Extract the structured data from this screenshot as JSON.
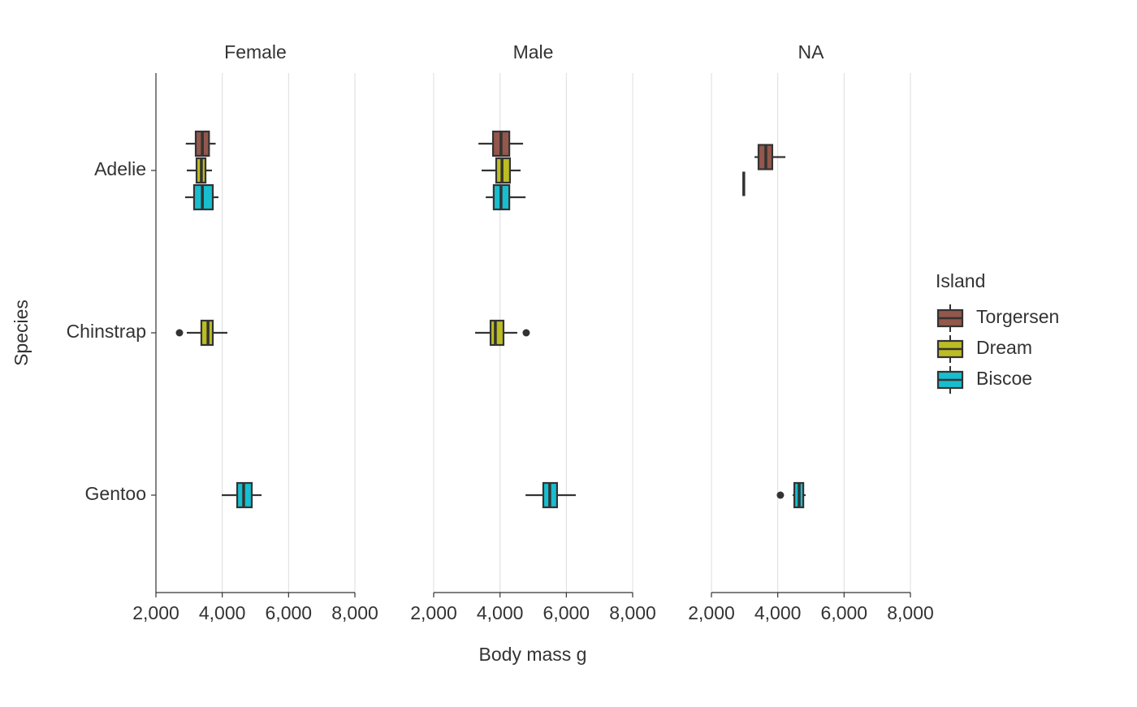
{
  "chart_data": {
    "type": "boxplot",
    "x_label": "Body mass g",
    "y_label": "Species",
    "categories": [
      "Adelie",
      "Chinstrap",
      "Gentoo"
    ],
    "legend_title": "Island",
    "series": [
      {
        "name": "Torgersen",
        "color": "#93574b"
      },
      {
        "name": "Dream",
        "color": "#bcbd22"
      },
      {
        "name": "Biscoe",
        "color": "#17becf"
      }
    ],
    "xlim": [
      2000,
      8000
    ],
    "xticks": [
      {
        "value": 2000,
        "label": "2,000"
      },
      {
        "value": 4000,
        "label": "4,000"
      },
      {
        "value": 6000,
        "label": "6,000"
      },
      {
        "value": 8000,
        "label": "8,000"
      }
    ],
    "grid": true,
    "facets": [
      {
        "name": "Female",
        "boxes": [
          {
            "species": "Adelie",
            "island": "Torgersen",
            "min": 2900,
            "q1": 3200,
            "median": 3400,
            "q3": 3600,
            "max": 3800,
            "outliers": []
          },
          {
            "species": "Adelie",
            "island": "Dream",
            "min": 2930,
            "q1": 3225,
            "median": 3370,
            "q3": 3495,
            "max": 3690,
            "outliers": []
          },
          {
            "species": "Adelie",
            "island": "Biscoe",
            "min": 2880,
            "q1": 3150,
            "median": 3400,
            "q3": 3715,
            "max": 3885,
            "outliers": []
          },
          {
            "species": "Chinstrap",
            "island": "Dream",
            "min": 2930,
            "q1": 3370,
            "median": 3570,
            "q3": 3715,
            "max": 4155,
            "outliers": [
              2710
            ]
          },
          {
            "species": "Gentoo",
            "island": "Biscoe",
            "min": 3985,
            "q1": 4450,
            "median": 4645,
            "q3": 4890,
            "max": 5185,
            "outliers": []
          }
        ]
      },
      {
        "name": "Male",
        "boxes": [
          {
            "species": "Adelie",
            "island": "Torgersen",
            "min": 3350,
            "q1": 3790,
            "median": 4030,
            "q3": 4280,
            "max": 4695,
            "outliers": []
          },
          {
            "species": "Adelie",
            "island": "Dream",
            "min": 3445,
            "q1": 3885,
            "median": 4060,
            "q3": 4300,
            "max": 4620,
            "outliers": []
          },
          {
            "species": "Adelie",
            "island": "Biscoe",
            "min": 3570,
            "q1": 3810,
            "median": 4030,
            "q3": 4280,
            "max": 4770,
            "outliers": []
          },
          {
            "species": "Chinstrap",
            "island": "Dream",
            "min": 3250,
            "q1": 3715,
            "median": 3860,
            "q3": 4105,
            "max": 4520,
            "outliers": [
              4790
            ]
          },
          {
            "species": "Gentoo",
            "island": "Biscoe",
            "min": 4770,
            "q1": 5305,
            "median": 5500,
            "q3": 5720,
            "max": 6285,
            "outliers": []
          }
        ]
      },
      {
        "name": "NA",
        "boxes": [
          {
            "species": "Adelie",
            "island": "Torgersen",
            "min": 3300,
            "q1": 3420,
            "median": 3640,
            "q3": 3835,
            "max": 4230,
            "outliers": []
          },
          {
            "species": "Adelie",
            "island": "Dream",
            "min": 2975,
            "q1": 2975,
            "median": 2975,
            "q3": 2975,
            "max": 2975,
            "outliers": []
          },
          {
            "species": "Gentoo",
            "island": "Biscoe",
            "min": 4450,
            "q1": 4500,
            "median": 4645,
            "q3": 4770,
            "max": 4840,
            "outliers": [
              4080
            ]
          }
        ]
      }
    ]
  }
}
